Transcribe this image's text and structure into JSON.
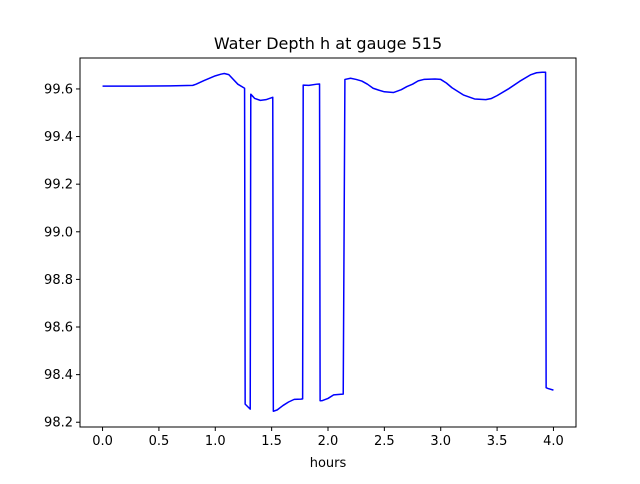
{
  "chart_data": {
    "type": "line",
    "title": "Water Depth h at gauge 515",
    "xlabel": "hours",
    "ylabel": "",
    "xlim": [
      -0.2,
      4.2
    ],
    "ylim": [
      98.18,
      99.73
    ],
    "xticks": [
      0.0,
      0.5,
      1.0,
      1.5,
      2.0,
      2.5,
      3.0,
      3.5,
      4.0
    ],
    "xtick_labels": [
      "0.0",
      "0.5",
      "1.0",
      "1.5",
      "2.0",
      "2.5",
      "3.0",
      "3.5",
      "4.0"
    ],
    "yticks": [
      98.2,
      98.4,
      98.6,
      98.8,
      99.0,
      99.2,
      99.4,
      99.6
    ],
    "ytick_labels": [
      "98.2",
      "98.4",
      "98.6",
      "98.8",
      "99.0",
      "99.2",
      "99.4",
      "99.6"
    ],
    "grid": false,
    "series": [
      {
        "color": "#0000ff",
        "x": [
          0.0,
          0.3,
          0.6,
          0.8,
          0.83,
          0.9,
          1.0,
          1.05,
          1.08,
          1.12,
          1.2,
          1.26,
          1.265,
          1.31,
          1.315,
          1.35,
          1.4,
          1.45,
          1.51,
          1.515,
          1.55,
          1.6,
          1.65,
          1.7,
          1.76,
          1.775,
          1.78,
          1.83,
          1.9,
          1.925,
          1.93,
          1.95,
          2.0,
          2.05,
          2.13,
          2.135,
          2.15,
          2.2,
          2.25,
          2.3,
          2.35,
          2.4,
          2.45,
          2.5,
          2.58,
          2.65,
          2.7,
          2.75,
          2.8,
          2.85,
          2.95,
          3.0,
          3.05,
          3.1,
          3.2,
          3.3,
          3.4,
          3.45,
          3.5,
          3.6,
          3.7,
          3.8,
          3.85,
          3.9,
          3.93,
          3.935,
          3.95,
          4.0
        ],
        "y": [
          99.612,
          99.612,
          99.613,
          99.615,
          99.62,
          99.635,
          99.655,
          99.662,
          99.665,
          99.66,
          99.62,
          99.603,
          98.276,
          98.255,
          99.578,
          99.56,
          99.552,
          99.555,
          99.565,
          98.246,
          98.252,
          98.27,
          98.285,
          98.296,
          98.297,
          98.298,
          99.616,
          99.615,
          99.62,
          99.621,
          98.29,
          98.291,
          98.3,
          98.315,
          98.318,
          98.318,
          99.64,
          99.645,
          99.64,
          99.633,
          99.62,
          99.603,
          99.595,
          99.588,
          99.585,
          99.597,
          99.61,
          99.62,
          99.634,
          99.64,
          99.642,
          99.64,
          99.625,
          99.605,
          99.575,
          99.558,
          99.555,
          99.56,
          99.572,
          99.6,
          99.632,
          99.66,
          99.668,
          99.67,
          99.67,
          98.345,
          98.342,
          98.335
        ]
      }
    ]
  }
}
